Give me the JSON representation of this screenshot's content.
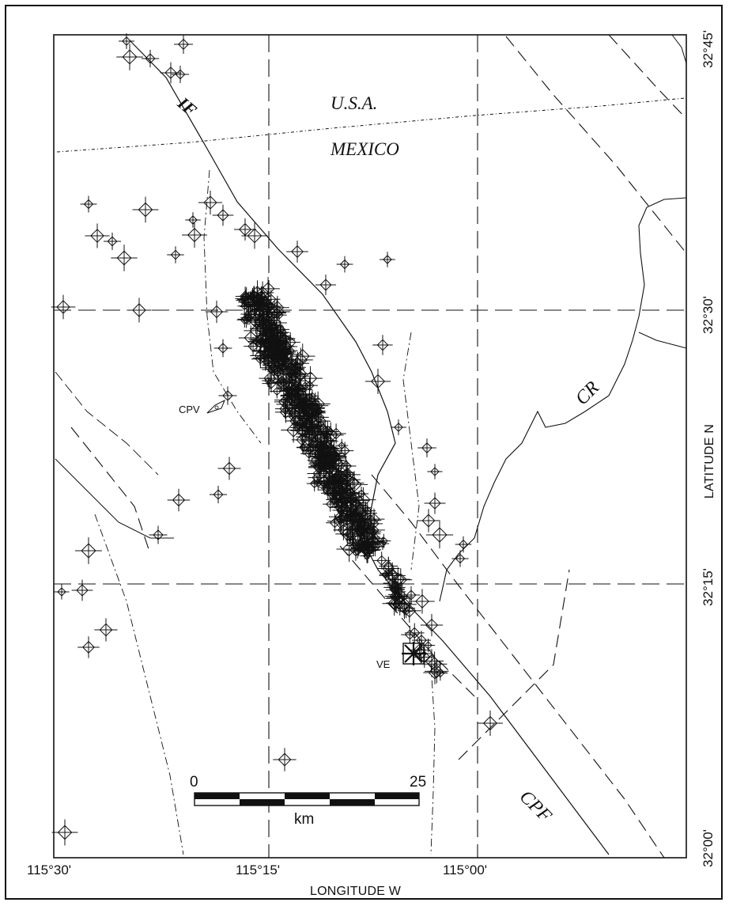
{
  "map": {
    "labels": {
      "usa": "U.S.A.",
      "mexico": "MEXICO",
      "if_fault": "IF",
      "cr": "CR",
      "cpf": "CPF",
      "cpv": "CPV",
      "ve": "VE"
    },
    "x_axis": {
      "title": "LONGITUDE W",
      "ticks": [
        "115°30'",
        "115°15'",
        "115°00'"
      ]
    },
    "y_axis": {
      "title": "LATITUDE N",
      "ticks": [
        "32°45'",
        "32°30'",
        "32°15'",
        "32°00'"
      ]
    },
    "scale_bar": {
      "start": "0",
      "end": "25",
      "unit": "km"
    }
  },
  "colors": {
    "ink": "#111111",
    "background": "#ffffff"
  }
}
